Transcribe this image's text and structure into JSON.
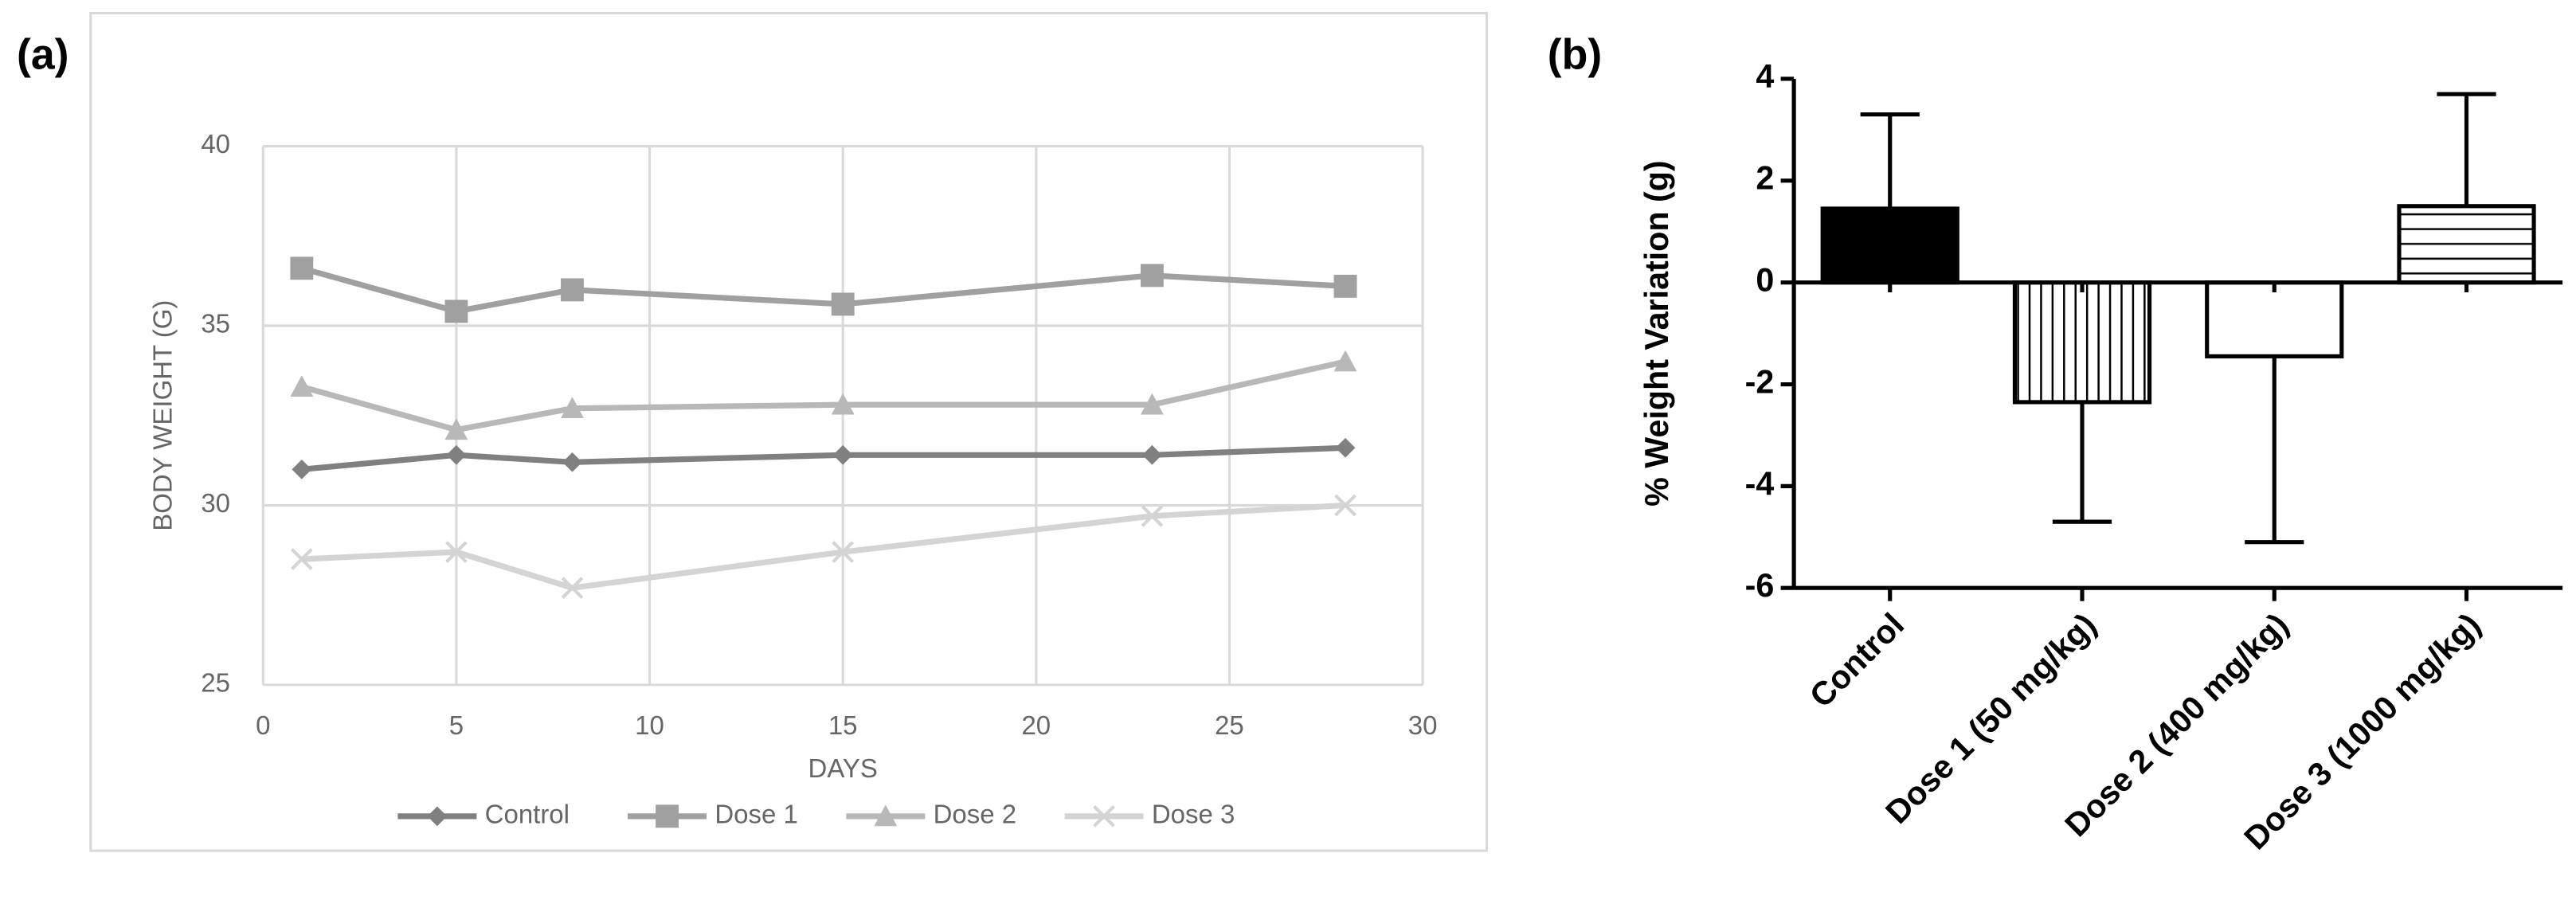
{
  "chart_data": [
    {
      "type": "line",
      "label": "(a)",
      "x_label": "DAYS",
      "y_label": "BODY WEIGHT (G)",
      "x": [
        1,
        5,
        8,
        15,
        23,
        28
      ],
      "series": [
        {
          "name": "Control",
          "color": "#808080",
          "marker": "diamond",
          "values": [
            31.0,
            31.4,
            31.2,
            31.4,
            31.4,
            31.6
          ]
        },
        {
          "name": "Dose 1",
          "color": "#a0a0a0",
          "marker": "square",
          "values": [
            36.6,
            35.4,
            36.0,
            35.6,
            36.4,
            36.1
          ]
        },
        {
          "name": "Dose 2",
          "color": "#b8b8b8",
          "marker": "triangle",
          "values": [
            33.3,
            32.1,
            32.7,
            32.8,
            32.8,
            34.0
          ]
        },
        {
          "name": "Dose 3",
          "color": "#d4d4d4",
          "marker": "x",
          "values": [
            28.5,
            28.7,
            27.7,
            28.7,
            29.7,
            30.0
          ]
        }
      ],
      "xlim": [
        0,
        30
      ],
      "xticks": [
        0,
        5,
        10,
        15,
        20,
        25,
        30
      ],
      "ylim": [
        25,
        40
      ],
      "yticks": [
        25,
        30,
        35,
        40
      ],
      "grid": true,
      "legend": "bottom"
    },
    {
      "type": "bar",
      "label": "(b)",
      "y_label": "% Weight Variation (g)",
      "categories": [
        "Control",
        "Dose 1 (50 mg/kg)",
        "Dose 2 (400 mg/kg)",
        "Dose 3 (1000 mg/kg)"
      ],
      "values": [
        1.45,
        -2.35,
        -1.45,
        1.5
      ],
      "errors": [
        1.85,
        2.35,
        3.65,
        2.2
      ],
      "patterns": [
        "solid",
        "vertical",
        "none",
        "horizontal"
      ],
      "color": "#000000",
      "ylim": [
        -6,
        4
      ],
      "yticks": [
        -6,
        -4,
        -2,
        0,
        2,
        4
      ],
      "grid": false
    }
  ]
}
